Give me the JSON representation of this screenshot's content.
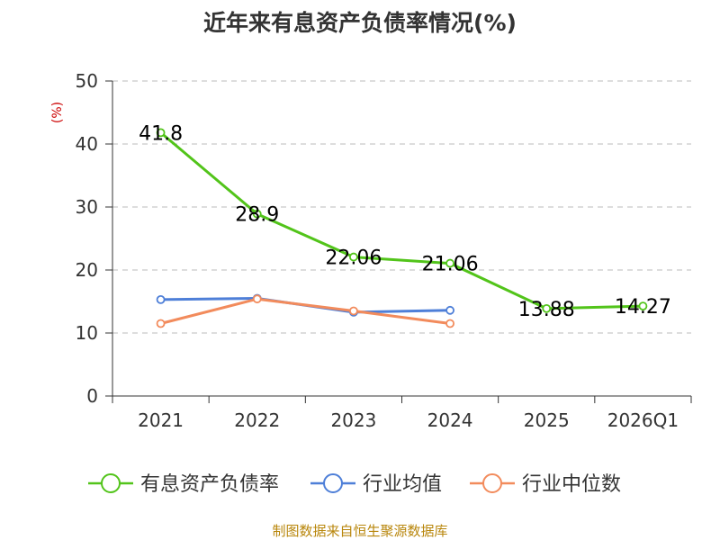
{
  "chart_data": {
    "type": "line",
    "title": "近年来有息资产负债率情况(%)",
    "ylabel": "(%)",
    "categories": [
      "2021",
      "2022",
      "2023",
      "2024",
      "2025",
      "2026Q1"
    ],
    "ylim": [
      0,
      50
    ],
    "yticks": [
      0,
      10,
      20,
      30,
      40,
      50
    ],
    "grid": true,
    "legend_position": "bottom",
    "series": [
      {
        "name": "有息资产负债率",
        "color": "#52c41a",
        "values": [
          41.8,
          28.9,
          22.06,
          21.06,
          13.88,
          14.27
        ],
        "labels": [
          "41.8",
          "28.9",
          "22.06",
          "21.06",
          "13.88",
          "14.27"
        ]
      },
      {
        "name": "行业均值",
        "color": "#4e7fd8",
        "values": [
          15.3,
          15.5,
          13.3,
          13.6,
          null,
          null
        ]
      },
      {
        "name": "行业中位数",
        "color": "#f28b5c",
        "values": [
          11.5,
          15.4,
          13.5,
          11.5,
          null,
          null
        ]
      }
    ]
  },
  "source_text": "制图数据来自恒生聚源数据库"
}
